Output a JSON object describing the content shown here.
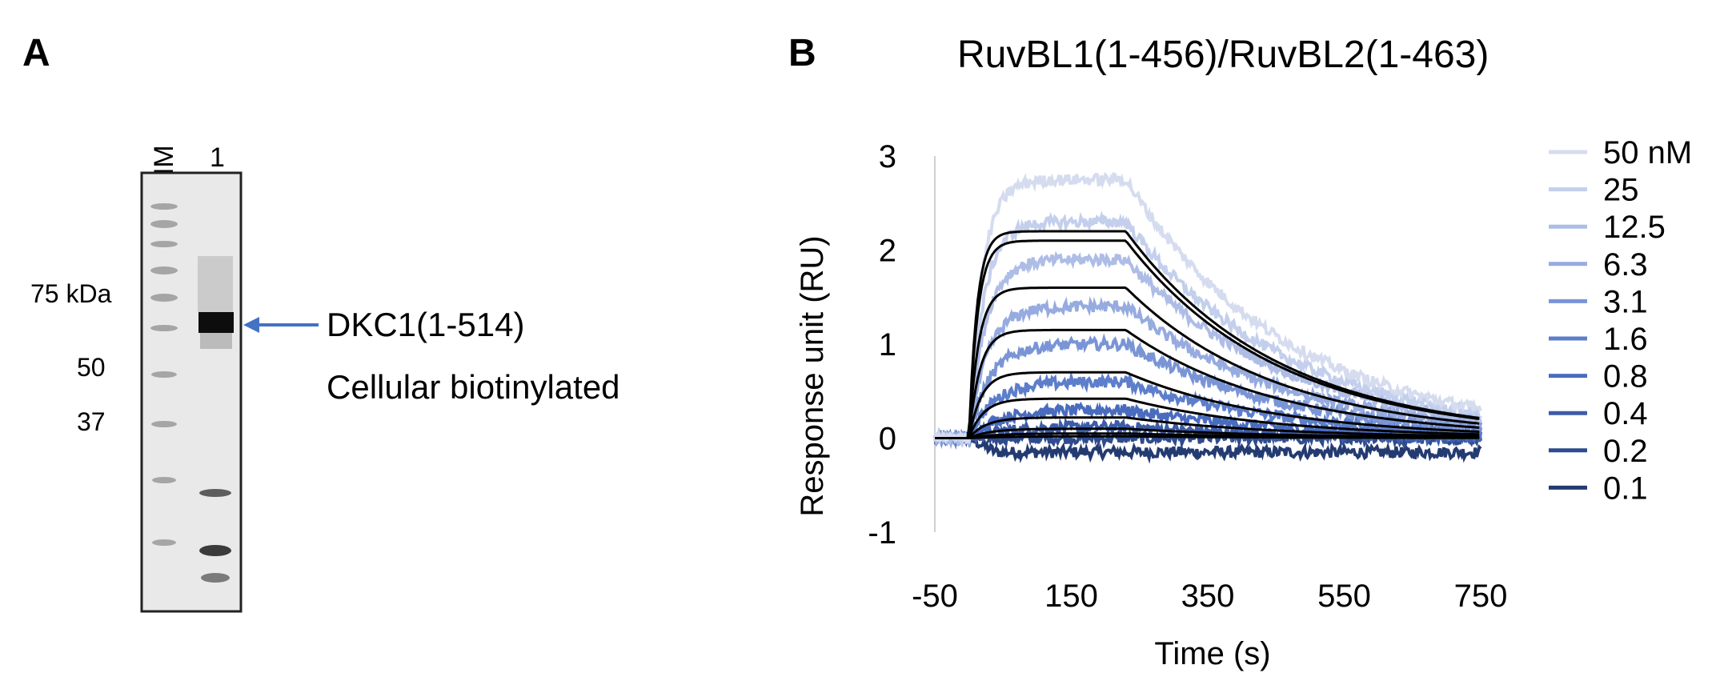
{
  "panel_a": {
    "letter": "A",
    "lane_labels": [
      "MM",
      "1"
    ],
    "mw_markers": [
      "75 kDa",
      "50",
      "37"
    ],
    "band_label_line1": "DKC1(1-514)",
    "band_label_line2": "Cellular biotinylated",
    "arrow_color": "#4472c4"
  },
  "panel_b": {
    "letter": "B",
    "chart_data": {
      "type": "line",
      "title": "RuvBL1(1-456)/RuvBL2(1-463)",
      "xlabel": "Time (s)",
      "ylabel": "Response unit (RU)",
      "xlim": [
        -50,
        750
      ],
      "ylim": [
        -1,
        3
      ],
      "x_ticks": [
        "-50",
        "150",
        "350",
        "550",
        "750"
      ],
      "y_ticks": [
        "3",
        "2",
        "1",
        "0",
        "-1"
      ],
      "grid": false,
      "legend_position": "right",
      "injection_start_s": 0,
      "injection_end_s": 230,
      "legend": [
        "50 nM",
        "25",
        "12.5",
        "6.3",
        "3.1",
        "1.6",
        "0.8",
        "0.4",
        "0.2",
        "0.1"
      ],
      "series": [
        {
          "name": "50 nM",
          "color": "#d5dcef",
          "plateau_ru": 2.75,
          "fit_plateau_ru": 2.2
        },
        {
          "name": "25",
          "color": "#c3cfec",
          "plateau_ru": 2.3,
          "fit_plateau_ru": 2.1
        },
        {
          "name": "12.5",
          "color": "#aebde6",
          "plateau_ru": 1.9,
          "fit_plateau_ru": 1.6
        },
        {
          "name": "6.3",
          "color": "#96abdf",
          "plateau_ru": 1.4,
          "fit_plateau_ru": 1.15
        },
        {
          "name": "3.1",
          "color": "#7a95d6",
          "plateau_ru": 1.0,
          "fit_plateau_ru": 0.7
        },
        {
          "name": "1.6",
          "color": "#5d7ecb",
          "plateau_ru": 0.6,
          "fit_plateau_ru": 0.42
        },
        {
          "name": "0.8",
          "color": "#4a6cbf",
          "plateau_ru": 0.3,
          "fit_plateau_ru": 0.22
        },
        {
          "name": "0.4",
          "color": "#3d5ca8",
          "plateau_ru": 0.12,
          "fit_plateau_ru": 0.1
        },
        {
          "name": "0.2",
          "color": "#2f4b8d",
          "plateau_ru": 0.0,
          "fit_plateau_ru": 0.05
        },
        {
          "name": "0.1",
          "color": "#243b72",
          "plateau_ru": -0.15,
          "fit_plateau_ru": 0.02
        }
      ],
      "fit_color": "#000000"
    }
  }
}
